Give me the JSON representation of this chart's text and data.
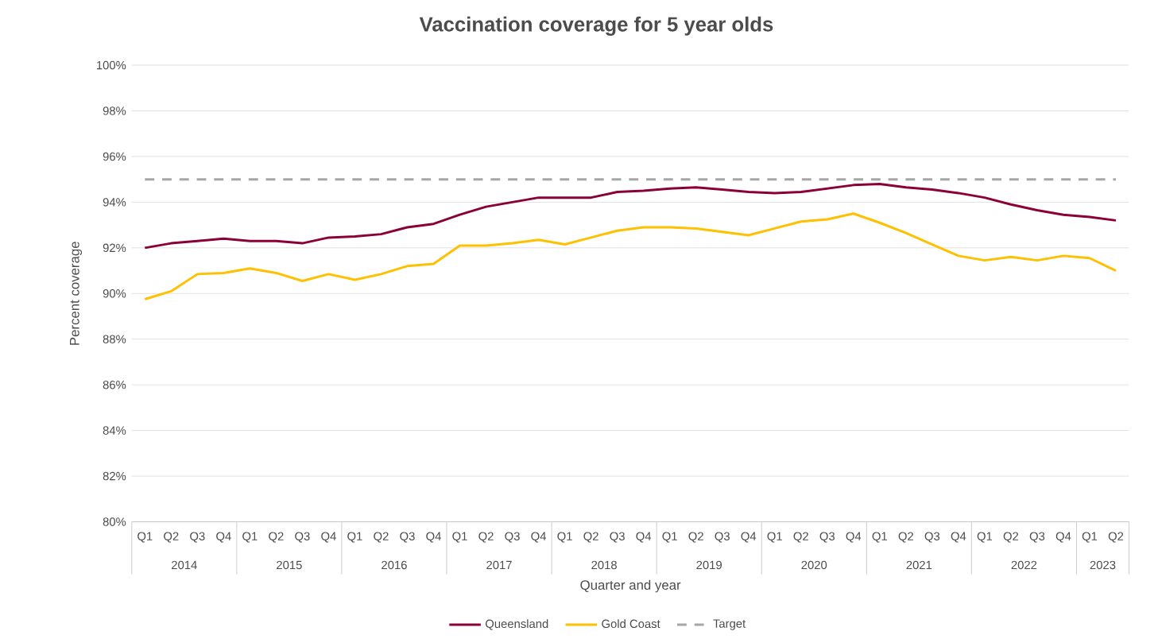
{
  "chart_data": {
    "type": "line",
    "title": "Vaccination coverage for 5 year olds",
    "xlabel": "Quarter and year",
    "ylabel": "Percent coverage",
    "categories": [
      "Q1",
      "Q2",
      "Q3",
      "Q4",
      "Q1",
      "Q2",
      "Q3",
      "Q4",
      "Q1",
      "Q2",
      "Q3",
      "Q4",
      "Q1",
      "Q2",
      "Q3",
      "Q4",
      "Q1",
      "Q2",
      "Q3",
      "Q4",
      "Q1",
      "Q2",
      "Q3",
      "Q4",
      "Q1",
      "Q2",
      "Q3",
      "Q4",
      "Q1",
      "Q2",
      "Q3",
      "Q4",
      "Q1",
      "Q2",
      "Q3",
      "Q4",
      "Q1",
      "Q2"
    ],
    "annotations": [
      "2014",
      "2015",
      "2016",
      "2017",
      "2018",
      "2019",
      "2020",
      "2021",
      "2022",
      "2023"
    ],
    "series": [
      {
        "name": "Queensland",
        "color": "#8c0038",
        "values": [
          92.0,
          92.2,
          92.3,
          92.4,
          92.3,
          92.3,
          92.2,
          92.45,
          92.5,
          92.6,
          92.9,
          93.05,
          93.45,
          93.8,
          94.0,
          94.2,
          94.2,
          94.2,
          94.45,
          94.5,
          94.6,
          94.65,
          94.55,
          94.45,
          94.4,
          94.45,
          94.6,
          94.75,
          94.8,
          94.65,
          94.55,
          94.4,
          94.2,
          93.9,
          93.65,
          93.45,
          93.35,
          93.2
        ]
      },
      {
        "name": "Gold Coast",
        "color": "#ffc000",
        "values": [
          89.75,
          90.1,
          90.85,
          90.9,
          91.1,
          90.9,
          90.55,
          90.85,
          90.6,
          90.85,
          91.2,
          91.3,
          92.1,
          92.1,
          92.2,
          92.35,
          92.15,
          92.45,
          92.75,
          92.9,
          92.9,
          92.85,
          92.7,
          92.55,
          92.85,
          93.15,
          93.25,
          93.5,
          93.1,
          92.65,
          92.15,
          91.65,
          91.45,
          91.6,
          91.45,
          91.65,
          91.55,
          91.0
        ]
      },
      {
        "name": "Target",
        "color": "#a6a6a6",
        "line_style": "dashed",
        "values": [
          95,
          95,
          95,
          95,
          95,
          95,
          95,
          95,
          95,
          95,
          95,
          95,
          95,
          95,
          95,
          95,
          95,
          95,
          95,
          95,
          95,
          95,
          95,
          95,
          95,
          95,
          95,
          95,
          95,
          95,
          95,
          95,
          95,
          95,
          95,
          95,
          95,
          95
        ]
      }
    ],
    "ylim": [
      80,
      100
    ],
    "yticks": [
      {
        "value": 80,
        "label": "80%"
      },
      {
        "value": 82,
        "label": "82%"
      },
      {
        "value": 84,
        "label": "84%"
      },
      {
        "value": 86,
        "label": "86%"
      },
      {
        "value": 88,
        "label": "88%"
      },
      {
        "value": 90,
        "label": "90%"
      },
      {
        "value": 92,
        "label": "92%"
      },
      {
        "value": 94,
        "label": "94%"
      },
      {
        "value": 96,
        "label": "96%"
      },
      {
        "value": 98,
        "label": "98%"
      },
      {
        "value": 100,
        "label": "100%"
      }
    ],
    "grid": "y",
    "legend": "bottom"
  }
}
